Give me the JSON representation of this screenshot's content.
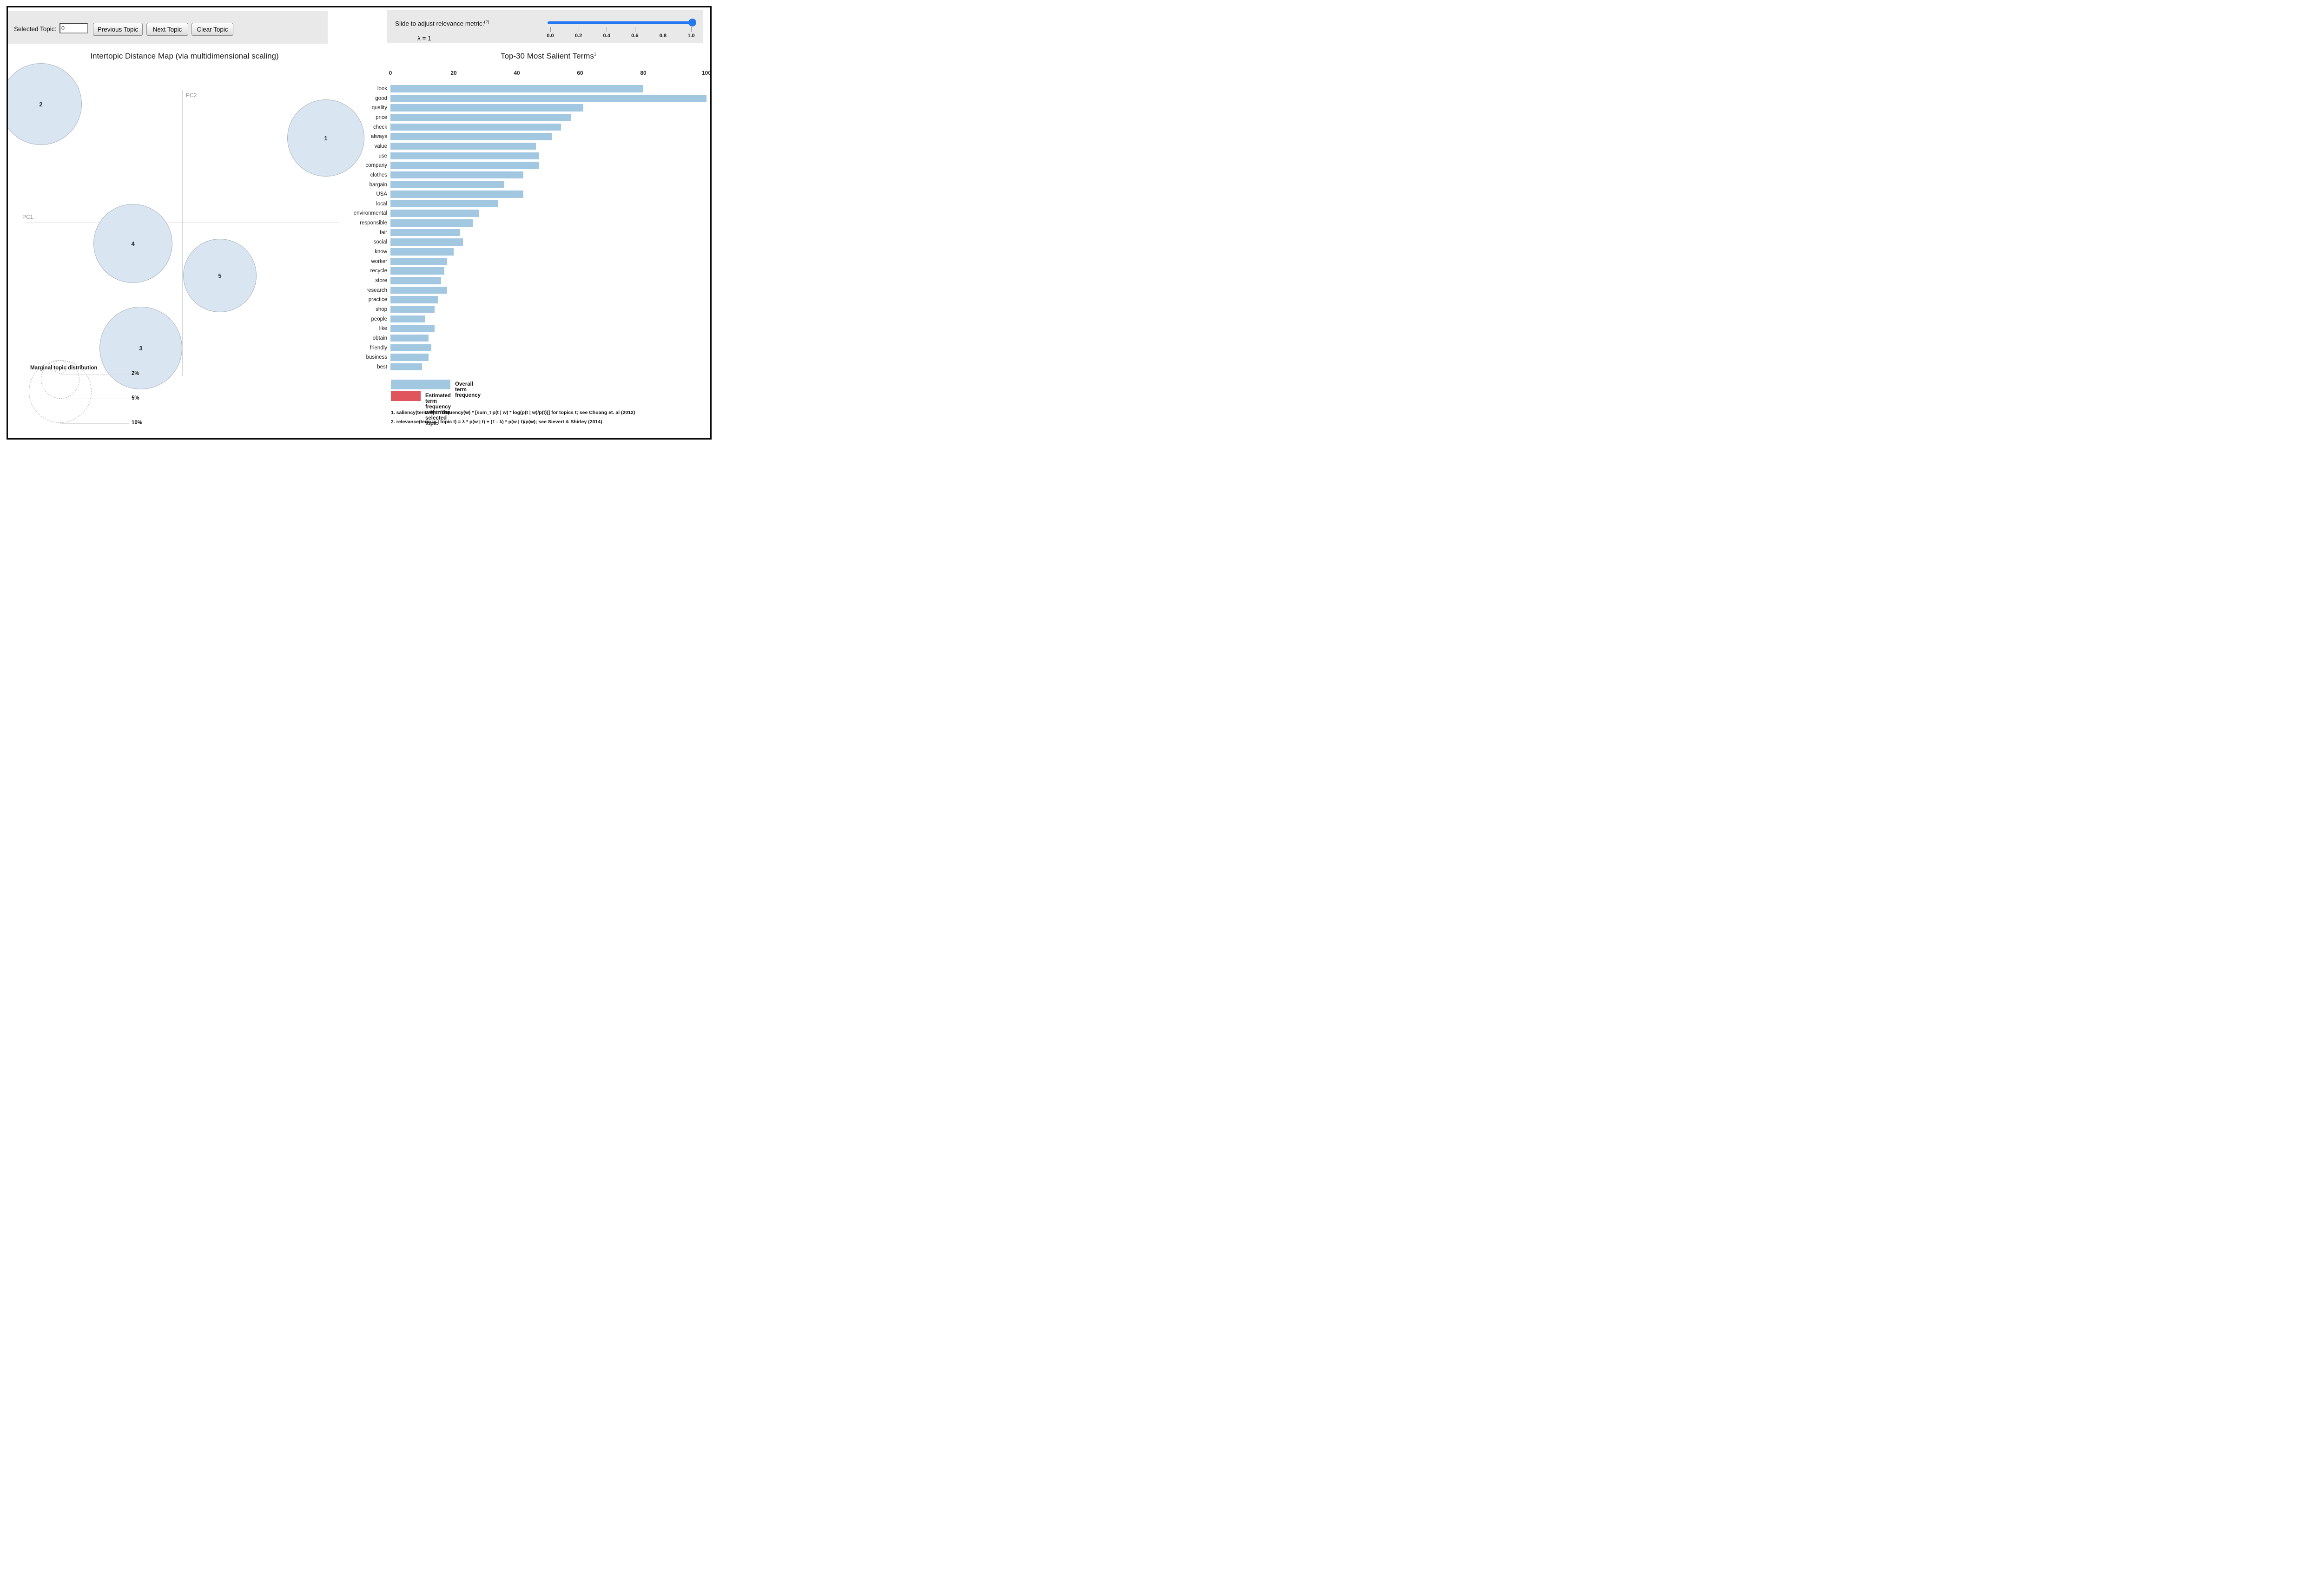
{
  "controls": {
    "selected_topic_label": "Selected Topic:",
    "selected_topic_value": "0",
    "prev_button": "Previous Topic",
    "next_button": "Next Topic",
    "clear_button": "Clear Topic"
  },
  "slider": {
    "label": "Slide to adjust relevance metric:",
    "label_sup": "(2)",
    "lambda_label": "λ = 1",
    "value": 1,
    "ticks": [
      "0.0",
      "0.2",
      "0.4",
      "0.6",
      "0.8",
      "1.0"
    ]
  },
  "colors": {
    "bar_blue": "#a2c7e0",
    "circle_fill": "#d9e6f1",
    "circle_stroke": "#a9b6c2",
    "legend_red": "#e0545b",
    "slider_blue": "#2377f0",
    "toolbar_gray": "#e9e9e9"
  },
  "chart_data": [
    {
      "type": "bar",
      "title": "Top-30 Most Salient Terms",
      "title_sup": "1",
      "xlabel": "",
      "ylabel": "",
      "xlim": [
        0,
        100
      ],
      "xticks": [
        0,
        20,
        40,
        60,
        80,
        100
      ],
      "grid": false,
      "legend_position": "bottom",
      "categories": [
        "look",
        "good",
        "quality",
        "price",
        "check",
        "always",
        "value",
        "use",
        "company",
        "clothes",
        "bargain",
        "USA",
        "local",
        "environmental",
        "responsible",
        "fair",
        "social",
        "know",
        "worker",
        "recycle",
        "store",
        "research",
        "practice",
        "shop",
        "people",
        "like",
        "obtain",
        "friendly",
        "business",
        "best"
      ],
      "values": [
        80,
        100,
        61,
        57,
        54,
        51,
        46,
        47,
        47,
        42,
        36,
        42,
        34,
        28,
        26,
        22,
        23,
        20,
        18,
        17,
        16,
        18,
        15,
        14,
        11,
        14,
        12,
        13,
        12,
        10
      ],
      "legend": [
        {
          "label": "Overall term frequency",
          "color": "#a2c7e0"
        },
        {
          "label": "Estimated term frequency within the selected topic",
          "color": "#e0545b"
        }
      ],
      "footnotes": [
        "1. saliency(term w) = frequency(w) * [sum_t p(t | w) * log(p(t | w)/p(t))] for topics t; see Chuang et. al (2012)",
        "2. relevance(term w | topic t) = λ * p(w | t) + (1 - λ) * p(w | t)/p(w); see Sievert & Shirley (2014)"
      ]
    },
    {
      "type": "scatter",
      "title": "Intertopic Distance Map (via multidimensional scaling)",
      "xlabel": "PC1",
      "ylabel": "PC2",
      "points": [
        {
          "label": "1",
          "cx": 683,
          "cy": 280,
          "r": 82
        },
        {
          "label": "2",
          "cx": 70,
          "cy": 207,
          "r": 87
        },
        {
          "label": "3",
          "cx": 285,
          "cy": 732,
          "r": 88
        },
        {
          "label": "4",
          "cx": 268,
          "cy": 507,
          "r": 84
        },
        {
          "label": "5",
          "cx": 455,
          "cy": 576,
          "r": 78
        }
      ],
      "marginal_legend": {
        "title": "Marginal topic distribution",
        "items": [
          {
            "label": "2%",
            "r": 15,
            "line_y": 789
          },
          {
            "label": "5%",
            "r": 42,
            "line_y": 842
          },
          {
            "label": "10%",
            "r": 68,
            "line_y": 895
          }
        ]
      }
    }
  ]
}
